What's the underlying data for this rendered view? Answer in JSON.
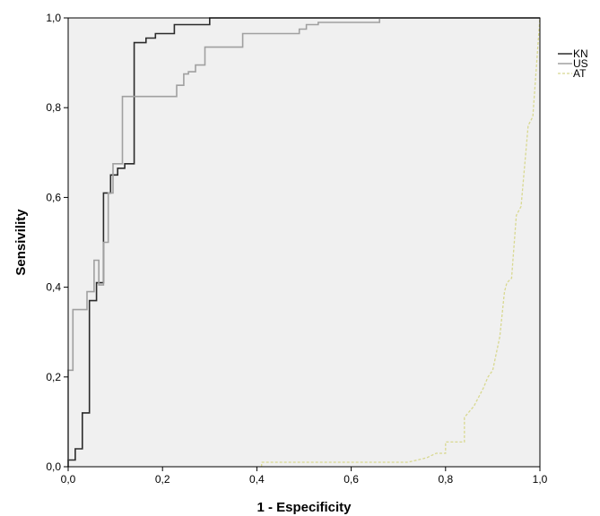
{
  "chart_data": {
    "type": "line",
    "title": "",
    "xlabel": "1 - Especificity",
    "ylabel": "Sensivility",
    "xlim": [
      0,
      1
    ],
    "ylim": [
      0,
      1
    ],
    "x_ticks": [
      "0,0",
      "0,2",
      "0,4",
      "0,6",
      "0,8",
      "1,0"
    ],
    "y_ticks": [
      "0,0",
      "0,2",
      "0,4",
      "0,6",
      "0,8",
      "1,0"
    ],
    "grid": false,
    "legend_position": "right-top",
    "background": "#f0f0f0",
    "series": [
      {
        "name": "KN",
        "color": "#2b2b2b",
        "dash": "solid",
        "x": [
          0,
          0,
          0.015,
          0.015,
          0.03,
          0.03,
          0.045,
          0.045,
          0.06,
          0.06,
          0.075,
          0.075,
          0.09,
          0.09,
          0.105,
          0.105,
          0.12,
          0.12,
          0.14,
          0.14,
          0.165,
          0.165,
          0.185,
          0.185,
          0.225,
          0.225,
          0.3,
          0.3,
          1.0
        ],
        "y": [
          0,
          0.015,
          0.015,
          0.04,
          0.04,
          0.12,
          0.12,
          0.37,
          0.37,
          0.41,
          0.41,
          0.61,
          0.61,
          0.65,
          0.65,
          0.665,
          0.665,
          0.675,
          0.675,
          0.945,
          0.945,
          0.955,
          0.955,
          0.965,
          0.965,
          0.985,
          0.985,
          1.0,
          1.0
        ]
      },
      {
        "name": "US",
        "color": "#a0a0a0",
        "dash": "solid",
        "x": [
          0,
          0,
          0.01,
          0.01,
          0.04,
          0.04,
          0.055,
          0.055,
          0.065,
          0.065,
          0.075,
          0.075,
          0.085,
          0.085,
          0.095,
          0.095,
          0.115,
          0.115,
          0.23,
          0.23,
          0.245,
          0.245,
          0.255,
          0.255,
          0.27,
          0.27,
          0.29,
          0.29,
          0.37,
          0.37,
          0.49,
          0.49,
          0.505,
          0.505,
          0.53,
          0.53,
          0.66,
          0.66
        ],
        "y": [
          0,
          0.215,
          0.215,
          0.35,
          0.35,
          0.39,
          0.39,
          0.46,
          0.46,
          0.405,
          0.405,
          0.5,
          0.5,
          0.61,
          0.61,
          0.675,
          0.675,
          0.825,
          0.825,
          0.85,
          0.85,
          0.875,
          0.875,
          0.88,
          0.88,
          0.895,
          0.895,
          0.935,
          0.935,
          0.965,
          0.965,
          0.975,
          0.975,
          0.985,
          0.985,
          0.99,
          0.99,
          1.0
        ]
      },
      {
        "name": "AT",
        "color": "#d8d890",
        "dash": "dashed",
        "x": [
          0.41,
          0.41,
          0.72,
          0.76,
          0.78,
          0.8,
          0.8,
          0.84,
          0.84,
          0.86,
          0.86,
          0.88,
          0.88,
          0.89,
          0.89,
          0.9,
          0.9,
          0.915,
          0.915,
          0.925,
          0.925,
          0.93,
          0.93,
          0.94,
          0.94,
          0.95,
          0.95,
          0.96,
          0.96,
          0.975,
          0.975,
          0.985,
          0.985,
          1.0
        ],
        "y": [
          0,
          0.01,
          0.01,
          0.02,
          0.03,
          0.03,
          0.055,
          0.055,
          0.11,
          0.135,
          0.135,
          0.175,
          0.175,
          0.2,
          0.2,
          0.215,
          0.215,
          0.29,
          0.29,
          0.39,
          0.39,
          0.41,
          0.41,
          0.42,
          0.42,
          0.56,
          0.56,
          0.58,
          0.58,
          0.76,
          0.76,
          0.78,
          0.78,
          1.0
        ]
      }
    ]
  }
}
